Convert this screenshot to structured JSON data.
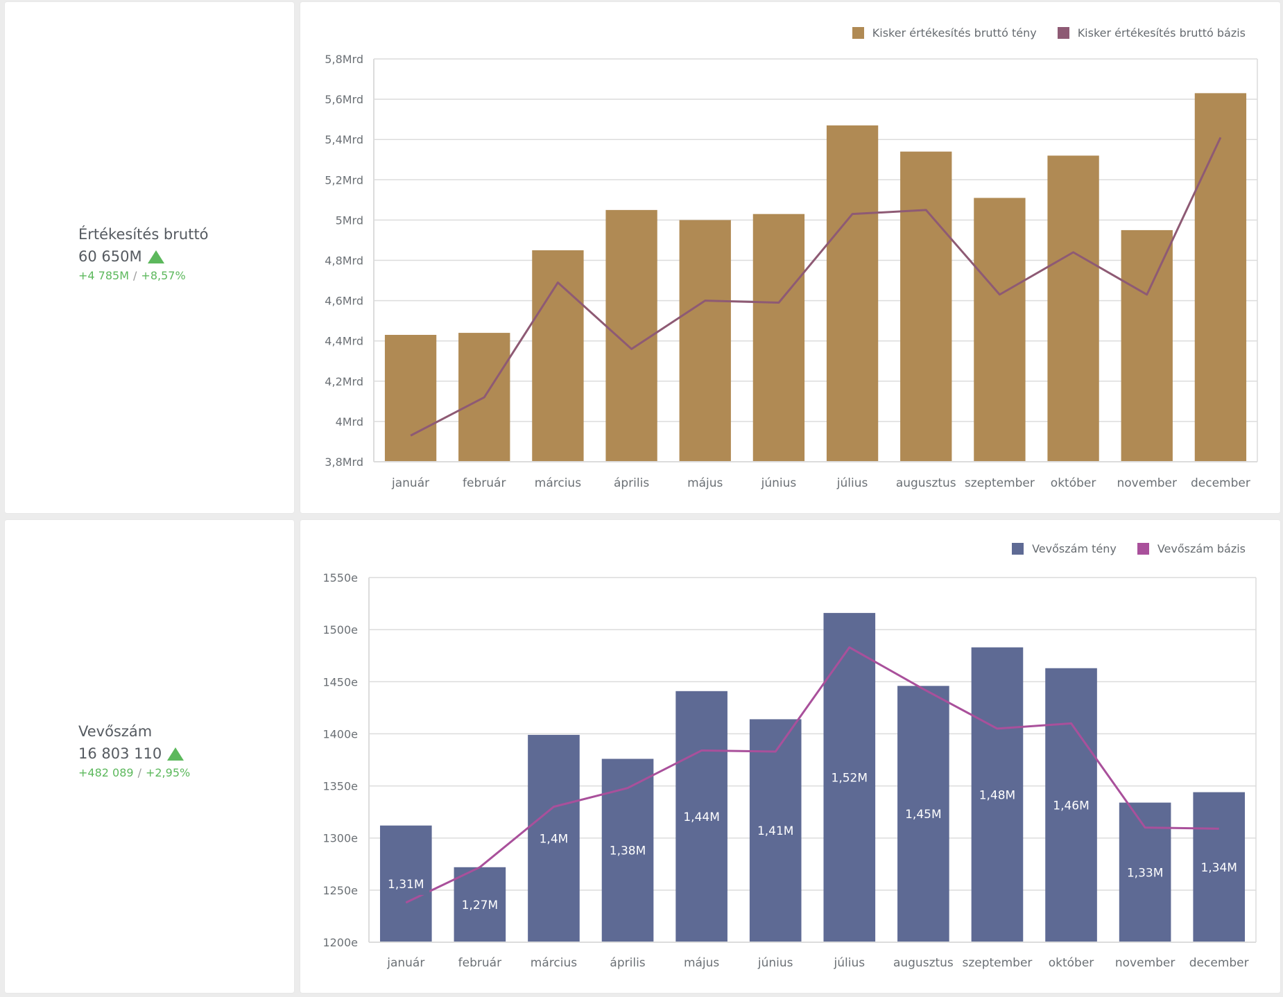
{
  "kpis": [
    {
      "title": "Értékesítés bruttó",
      "value": "60 650M",
      "trend": "up",
      "delta_abs": "+4 785M",
      "delta_sep": "/",
      "delta_pct": "+8,57%"
    },
    {
      "title": "Vevőszám",
      "value": "16 803 110",
      "trend": "up",
      "delta_abs": "+482 089",
      "delta_sep": "/",
      "delta_pct": "+2,95%"
    }
  ],
  "colors": {
    "sales_bar": "#b08a54",
    "sales_line": "#8e5a74",
    "customers_bar": "#5e6a94",
    "customers_line": "#a9509b",
    "trend_up": "#5cb85c",
    "grid": "#dcdcdc",
    "axis_text": "#6b7075"
  },
  "chart_data": [
    {
      "type": "bar",
      "title": "",
      "categories": [
        "január",
        "február",
        "március",
        "április",
        "május",
        "június",
        "július",
        "augusztus",
        "szeptember",
        "október",
        "november",
        "december"
      ],
      "series": [
        {
          "name": "Kisker értékesítés bruttó tény",
          "kind": "bar",
          "unit": "Mrd",
          "values": [
            4.43,
            4.44,
            4.85,
            5.05,
            5.0,
            5.03,
            5.47,
            5.34,
            5.11,
            5.32,
            4.95,
            5.63
          ]
        },
        {
          "name": "Kisker értékesítés bruttó bázis",
          "kind": "line",
          "unit": "Mrd",
          "values": [
            3.93,
            4.12,
            4.69,
            4.36,
            4.6,
            4.59,
            5.03,
            5.05,
            4.63,
            4.84,
            4.63,
            5.41
          ]
        }
      ],
      "xlabel": "",
      "ylabel": "",
      "ylim": [
        3.8,
        5.8
      ],
      "yticks": [
        3.8,
        4.0,
        4.2,
        4.4,
        4.6,
        4.8,
        5.0,
        5.2,
        5.4,
        5.6,
        5.8
      ],
      "ytick_labels": [
        "3,8Mrd",
        "4Mrd",
        "4,2Mrd",
        "4,4Mrd",
        "4,6Mrd",
        "4,8Mrd",
        "5Mrd",
        "5,2Mrd",
        "5,4Mrd",
        "5,6Mrd",
        "5,8Mrd"
      ],
      "grid": true,
      "legend": "top-right",
      "data_labels": []
    },
    {
      "type": "bar",
      "title": "",
      "categories": [
        "január",
        "február",
        "március",
        "április",
        "május",
        "június",
        "július",
        "augusztus",
        "szeptember",
        "október",
        "november",
        "december"
      ],
      "series": [
        {
          "name": "Vevőszám tény",
          "kind": "bar",
          "unit": "e",
          "values": [
            1312,
            1272,
            1399,
            1376,
            1441,
            1414,
            1516,
            1446,
            1483,
            1463,
            1334,
            1344
          ]
        },
        {
          "name": "Vevőszám bázis",
          "kind": "line",
          "unit": "e",
          "values": [
            1238,
            1272,
            1330,
            1348,
            1384,
            1383,
            1483,
            1443,
            1405,
            1410,
            1310,
            1309
          ]
        }
      ],
      "xlabel": "",
      "ylabel": "",
      "ylim": [
        1200,
        1550
      ],
      "yticks": [
        1200,
        1250,
        1300,
        1350,
        1400,
        1450,
        1500,
        1550
      ],
      "ytick_labels": [
        "1200e",
        "1250e",
        "1300e",
        "1350e",
        "1400e",
        "1450e",
        "1500e",
        "1550e"
      ],
      "grid": true,
      "legend": "top-right",
      "data_labels": [
        "1,31M",
        "1,27M",
        "1,4M",
        "1,38M",
        "1,44M",
        "1,41M",
        "1,52M",
        "1,45M",
        "1,48M",
        "1,46M",
        "1,33M",
        "1,34M"
      ]
    }
  ]
}
